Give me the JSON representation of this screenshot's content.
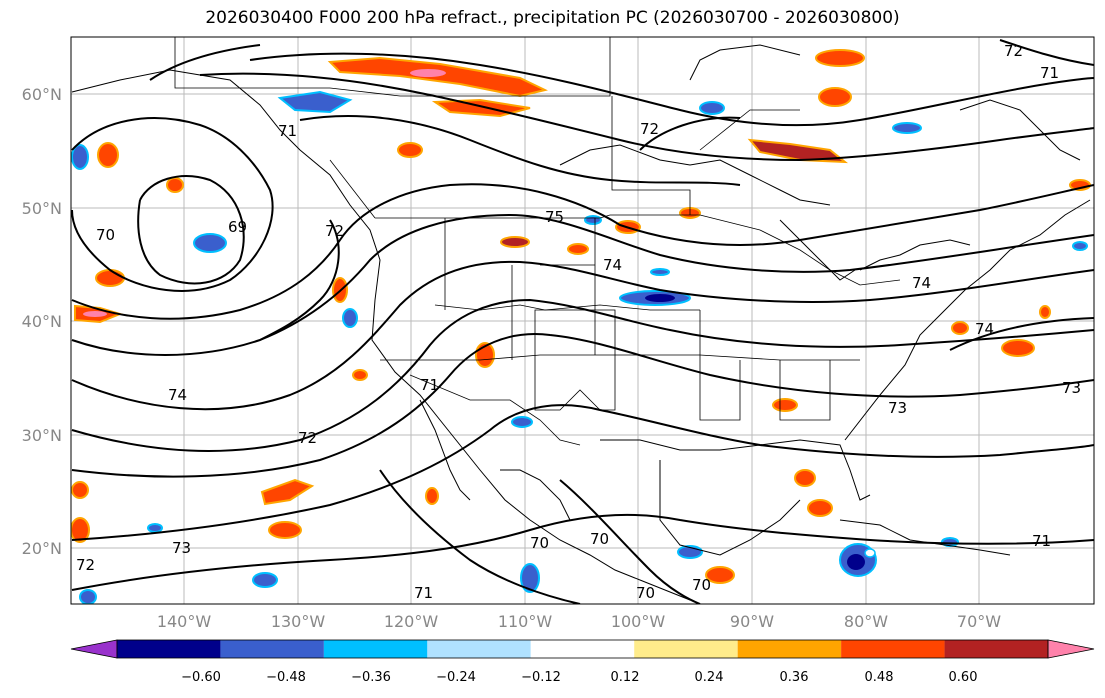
{
  "title": "2026030400 F000 200 hPa refract., precipitation PC (2026030700 - 2026030800)",
  "lat_labels": [
    "60°N",
    "50°N",
    "40°N",
    "30°N",
    "20°N"
  ],
  "lon_labels": [
    "140°W",
    "130°W",
    "120°W",
    "110°W",
    "100°W",
    "90°W",
    "80°W",
    "70°W"
  ],
  "colorbar": {
    "colors": [
      "#9932cc",
      "#00008b",
      "#3a5fcd",
      "#00bfff",
      "#b0e2ff",
      "#ffffff",
      "#ffec8b",
      "#ffa500",
      "#ff4500",
      "#b22222",
      "#ff82ab"
    ],
    "ticks": [
      "−0.60",
      "−0.48",
      "−0.36",
      "−0.24",
      "−0.12",
      "0.12",
      "0.24",
      "0.36",
      "0.48",
      "0.60"
    ]
  },
  "contour_labels": [
    "72",
    "71",
    "72",
    "75",
    "74",
    "74",
    "74",
    "73",
    "71",
    "72",
    "74",
    "69",
    "70",
    "72",
    "71",
    "70",
    "70",
    "70",
    "73",
    "72",
    "71",
    "70",
    "73",
    "71"
  ]
}
